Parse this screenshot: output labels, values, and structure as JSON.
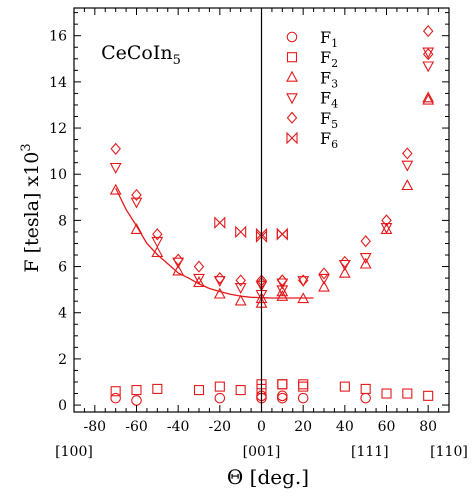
{
  "chart_data": {
    "type": "scatter",
    "xlabel": "Θ  [deg.]",
    "ylabel_main": "F [tesla] x10",
    "ylabel_exp": "3",
    "xlim": [
      -90,
      90
    ],
    "ylim": [
      -0.3,
      17.2
    ],
    "x_ticks": [
      "-80",
      "-60",
      "-40",
      "-20",
      "0",
      "20",
      "40",
      "60",
      "80"
    ],
    "y_ticks": [
      "0",
      "2",
      "4",
      "6",
      "8",
      "10",
      "12",
      "14",
      "16"
    ],
    "direction_labels": [
      {
        "x": -90,
        "text": "[100]"
      },
      {
        "x": 0,
        "text": "[001]"
      },
      {
        "x": 52,
        "text": "[111]"
      },
      {
        "x": 90,
        "text": "[110]"
      }
    ],
    "annotation": {
      "base": "CeCoIn",
      "sub": "5",
      "x": -77,
      "y": 15.0
    },
    "color": "#e41a1c",
    "marker_size": 10,
    "series": [
      {
        "name": "F",
        "sub": "1",
        "marker": "circle",
        "x": [
          -70,
          -60,
          -20,
          0,
          0,
          10,
          10,
          20,
          50
        ],
        "y": [
          0.3,
          0.2,
          0.3,
          0.4,
          0.3,
          0.4,
          0.3,
          0.3,
          0.3
        ]
      },
      {
        "name": "F",
        "sub": "2",
        "marker": "square",
        "x": [
          -70,
          -60,
          -50,
          -30,
          -20,
          -10,
          0,
          0,
          10,
          10,
          20,
          20,
          40,
          50,
          60,
          70,
          80
        ],
        "y": [
          0.6,
          0.65,
          0.7,
          0.65,
          0.8,
          0.65,
          0.9,
          0.7,
          0.9,
          0.9,
          0.8,
          0.9,
          0.8,
          0.7,
          0.5,
          0.5,
          0.4
        ]
      },
      {
        "name": "F",
        "sub": "3",
        "marker": "triangle-up",
        "x": [
          -70,
          -60,
          -50,
          -40,
          -30,
          -20,
          -10,
          0,
          0,
          10,
          10,
          20,
          30,
          40,
          50,
          60,
          70,
          80,
          80
        ],
        "y": [
          9.3,
          7.6,
          6.6,
          5.8,
          5.3,
          4.8,
          4.5,
          4.4,
          4.6,
          4.7,
          4.9,
          4.6,
          5.1,
          5.7,
          6.1,
          7.6,
          9.5,
          13.2,
          13.3
        ]
      },
      {
        "name": "F",
        "sub": "4",
        "marker": "triangle-down",
        "x": [
          -70,
          -60,
          -50,
          -40,
          -30,
          -20,
          -10,
          0,
          0,
          10,
          10,
          20,
          30,
          40,
          50,
          60,
          70,
          80,
          80
        ],
        "y": [
          10.3,
          8.8,
          7.1,
          6.2,
          5.5,
          5.4,
          5.1,
          4.8,
          5.2,
          5.0,
          5.3,
          5.4,
          5.5,
          6.1,
          6.4,
          7.7,
          10.4,
          14.7,
          15.3
        ]
      },
      {
        "name": "F",
        "sub": "5",
        "marker": "diamond",
        "x": [
          -70,
          -60,
          -50,
          -40,
          -30,
          -20,
          -10,
          0,
          0,
          10,
          10,
          20,
          30,
          40,
          50,
          60,
          70,
          80,
          80
        ],
        "y": [
          11.1,
          9.1,
          7.4,
          6.3,
          6.0,
          5.5,
          5.4,
          5.4,
          5.3,
          5.4,
          5.4,
          5.4,
          5.7,
          6.2,
          7.1,
          8.0,
          10.9,
          15.2,
          16.2
        ]
      },
      {
        "name": "F",
        "sub": "6",
        "marker": "bowtie",
        "x": [
          -20,
          -10,
          0,
          0,
          10,
          10
        ],
        "y": [
          7.9,
          7.5,
          7.4,
          7.3,
          7.4,
          7.4
        ]
      }
    ],
    "fit_curve": {
      "x": [
        -70,
        -65,
        -60,
        -55,
        -50,
        -45,
        -40,
        -35,
        -30,
        -25,
        -20,
        -15,
        -10,
        -5,
        0,
        5,
        10,
        15,
        20,
        25
      ],
      "y": [
        9.4,
        8.47,
        7.76,
        7.0,
        6.52,
        6.12,
        5.72,
        5.5,
        5.25,
        5.05,
        4.92,
        4.8,
        4.72,
        4.67,
        4.65,
        4.64,
        4.64,
        4.64,
        4.64,
        4.64
      ]
    }
  }
}
